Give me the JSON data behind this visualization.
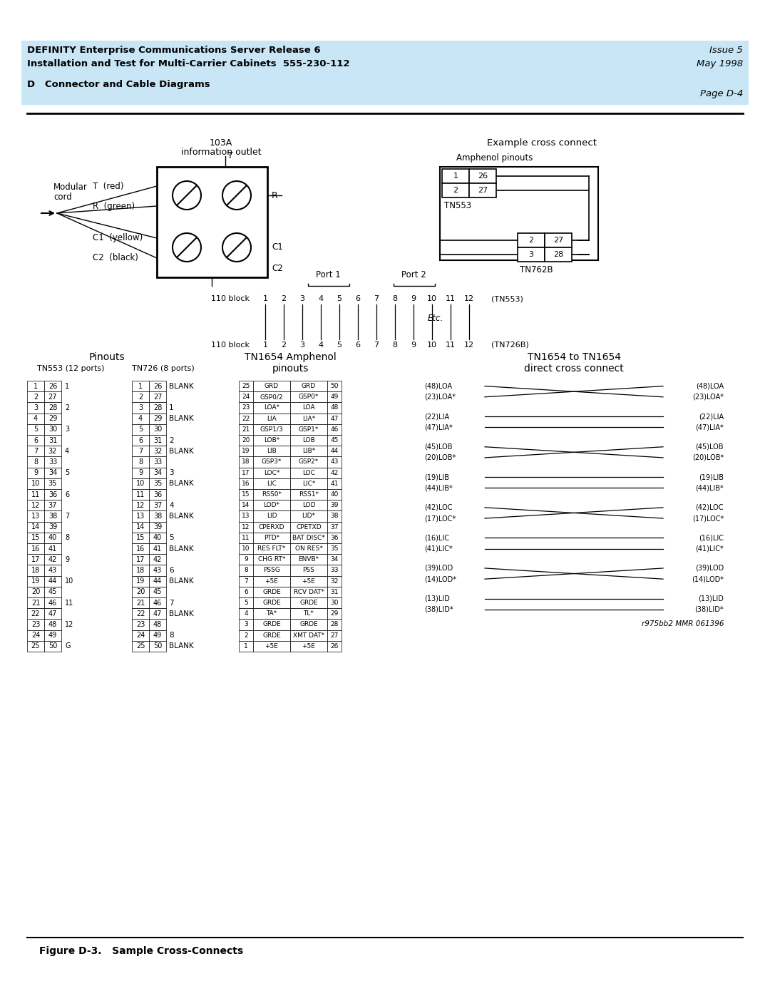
{
  "header_bg": "#c8e6f5",
  "header_line1": "DEFINITY Enterprise Communications Server Release 6",
  "header_line2": "Installation and Test for Multi-Carrier Cabinets  555-230-112",
  "header_right1": "Issue 5",
  "header_right2": "May 1998",
  "header_section": "D   Connector and Cable Diagrams",
  "header_page": "Page D-4",
  "figure_caption": "Figure D-3.   Sample Cross-Connects",
  "title_103a": "103A\ninformation outlet",
  "title_example": "Example cross connect",
  "subtitle_amphenol": "Amphenol pinouts",
  "tn553_label": "TN553",
  "tn762b_label": "TN762B",
  "port1_label": "Port 1",
  "port2_label": "Port 2",
  "block_label_tn553": "(TN553)",
  "block_label_tn726b": "(TN726B)",
  "etc_label": "Etc.",
  "pinouts_title": "Pinouts",
  "tn553_ports_title": "TN553 (12 ports)",
  "tn726_ports_title": "TN726 (8 ports)",
  "amphenol_title": "TN1654 Amphenol\npinouts",
  "cross_connect_title": "TN1654 to TN1654\ndirect cross connect",
  "ref_label": "r975bb2 MMR 061396",
  "tn553_rows": [
    [
      1,
      26,
      1
    ],
    [
      2,
      27,
      ""
    ],
    [
      3,
      28,
      2
    ],
    [
      4,
      29,
      ""
    ],
    [
      5,
      30,
      3
    ],
    [
      6,
      31,
      ""
    ],
    [
      7,
      32,
      4
    ],
    [
      8,
      33,
      ""
    ],
    [
      9,
      34,
      5
    ],
    [
      10,
      35,
      ""
    ],
    [
      11,
      36,
      6
    ],
    [
      12,
      37,
      ""
    ],
    [
      13,
      38,
      7
    ],
    [
      14,
      39,
      ""
    ],
    [
      15,
      40,
      8
    ],
    [
      16,
      41,
      ""
    ],
    [
      17,
      42,
      9
    ],
    [
      18,
      43,
      ""
    ],
    [
      19,
      44,
      10
    ],
    [
      20,
      45,
      ""
    ],
    [
      21,
      46,
      11
    ],
    [
      22,
      47,
      ""
    ],
    [
      23,
      48,
      12
    ],
    [
      24,
      49,
      ""
    ],
    [
      25,
      50,
      "G"
    ]
  ],
  "tn726_rows": [
    [
      1,
      26,
      "BLANK"
    ],
    [
      2,
      27,
      ""
    ],
    [
      3,
      28,
      1
    ],
    [
      4,
      29,
      "BLANK"
    ],
    [
      5,
      30,
      ""
    ],
    [
      6,
      31,
      2
    ],
    [
      7,
      32,
      "BLANK"
    ],
    [
      8,
      33,
      ""
    ],
    [
      9,
      34,
      3
    ],
    [
      10,
      35,
      "BLANK"
    ],
    [
      11,
      36,
      ""
    ],
    [
      12,
      37,
      4
    ],
    [
      13,
      38,
      "BLANK"
    ],
    [
      14,
      39,
      ""
    ],
    [
      15,
      40,
      5
    ],
    [
      16,
      41,
      "BLANK"
    ],
    [
      17,
      42,
      ""
    ],
    [
      18,
      43,
      6
    ],
    [
      19,
      44,
      "BLANK"
    ],
    [
      20,
      45,
      ""
    ],
    [
      21,
      46,
      7
    ],
    [
      22,
      47,
      "BLANK"
    ],
    [
      23,
      48,
      ""
    ],
    [
      24,
      49,
      8
    ],
    [
      25,
      50,
      "BLANK"
    ]
  ],
  "amphenol_rows": [
    [
      25,
      "GRD",
      "GRD",
      50
    ],
    [
      24,
      "GSP0/2",
      "GSP0*",
      49
    ],
    [
      23,
      "LOA*",
      "LOA",
      48
    ],
    [
      22,
      "LIA",
      "LIA*",
      47
    ],
    [
      21,
      "GSP1/3",
      "GSP1*",
      46
    ],
    [
      20,
      "LOB*",
      "LOB",
      45
    ],
    [
      19,
      "LIB",
      "LIB*",
      44
    ],
    [
      18,
      "GSP3*",
      "GSP2*",
      43
    ],
    [
      17,
      "LOC*",
      "LOC",
      42
    ],
    [
      16,
      "LIC",
      "LIC*",
      41
    ],
    [
      15,
      "RSS0*",
      "RSS1*",
      40
    ],
    [
      14,
      "LOD*",
      "LOD",
      39
    ],
    [
      13,
      "LID",
      "LID*",
      38
    ],
    [
      12,
      "CPERXD",
      "CPETXD",
      37
    ],
    [
      11,
      "PTD*",
      "BAT DISC*",
      36
    ],
    [
      10,
      "RES FLT*",
      "ON RES*",
      35
    ],
    [
      9,
      "CHG RT*",
      "ENVB*",
      34
    ],
    [
      8,
      "PSSG",
      "PSS",
      33
    ],
    [
      7,
      "+5E",
      "+5E",
      32
    ],
    [
      6,
      "GRDE",
      "RCV DAT*",
      31
    ],
    [
      5,
      "GRDE",
      "GRDE",
      30
    ],
    [
      4,
      "TA*",
      "TL*",
      29
    ],
    [
      3,
      "GRDE",
      "GRDE",
      28
    ],
    [
      2,
      "GRDE",
      "XMT DAT*",
      27
    ],
    [
      1,
      "+5E",
      "+5E",
      26
    ]
  ],
  "cc_groups": [
    {
      "labels": [
        "(48)LOA",
        "(23)LOA*"
      ],
      "cross": true
    },
    {
      "labels": [
        "(22)LIA",
        "(47)LIA*"
      ],
      "cross": false
    },
    {
      "labels": [
        "(45)LOB",
        "(20)LOB*"
      ],
      "cross": true
    },
    {
      "labels": [
        "(19)LIB",
        "(44)LIB*"
      ],
      "cross": false
    },
    {
      "labels": [
        "(42)LOC",
        "(17)LOC*"
      ],
      "cross": true
    },
    {
      "labels": [
        "(16)LIC",
        "(41)LIC*"
      ],
      "cross": false
    },
    {
      "labels": [
        "(39)LOD",
        "(14)LOD*"
      ],
      "cross": true
    },
    {
      "labels": [
        "(13)LID",
        "(38)LID*"
      ],
      "cross": false
    }
  ]
}
